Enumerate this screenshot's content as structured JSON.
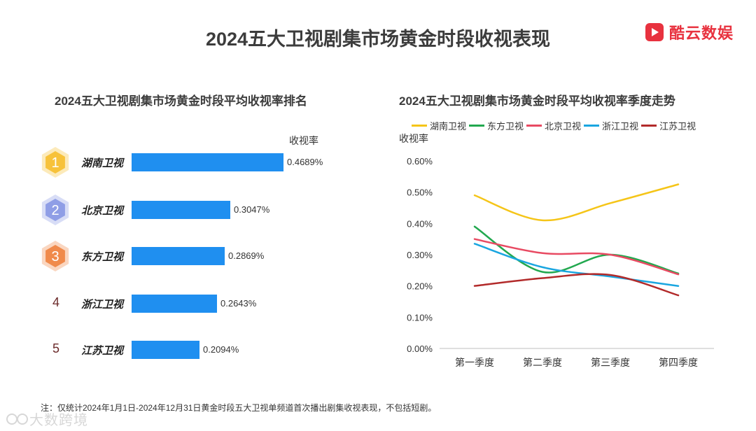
{
  "header": {
    "title": "2024五大卫视剧集市场黄金时段收视表现",
    "brand_name": "酷云数娱",
    "brand_color": "#e8323f"
  },
  "left_panel": {
    "subtitle": "2024五大卫视剧集市场黄金时段平均收视率排名",
    "value_header": "收视率",
    "rows": [
      {
        "rank": "1",
        "name": "湖南卫视",
        "value": 0.4689,
        "label": "0.4689%",
        "badge_color": "#f7c23a"
      },
      {
        "rank": "2",
        "name": "北京卫视",
        "value": 0.3047,
        "label": "0.3047%",
        "badge_color": "#8f9ee6"
      },
      {
        "rank": "3",
        "name": "东方卫视",
        "value": 0.2869,
        "label": "0.2869%",
        "badge_color": "#f08a4b"
      },
      {
        "rank": "4",
        "name": "浙江卫视",
        "value": 0.2643,
        "label": "0.2643%",
        "badge_color": ""
      },
      {
        "rank": "5",
        "name": "江苏卫视",
        "value": 0.2094,
        "label": "0.2094%",
        "badge_color": ""
      }
    ],
    "bar_color": "#1f8ff0"
  },
  "right_panel": {
    "subtitle": "2024五大卫视剧集市场黄金时段平均收视率季度走势"
  },
  "chart_data": {
    "type": "line",
    "title": "2024五大卫视剧集市场黄金时段平均收视率季度走势",
    "ylabel": "收视率",
    "xlabel": "",
    "categories": [
      "第一季度",
      "第二季度",
      "第三季度",
      "第四季度"
    ],
    "ylim": [
      0,
      0.6
    ],
    "yticks": [
      0,
      0.1,
      0.2,
      0.3,
      0.4,
      0.5,
      0.6
    ],
    "ytick_labels": [
      "0.00%",
      "0.10%",
      "0.20%",
      "0.30%",
      "0.40%",
      "0.50%",
      "0.60%"
    ],
    "grid": false,
    "legend_position": "top",
    "series": [
      {
        "name": "湖南卫视",
        "color": "#f5c518",
        "values": [
          0.49,
          0.41,
          0.465,
          0.525
        ]
      },
      {
        "name": "东方卫视",
        "color": "#22a84f",
        "values": [
          0.39,
          0.245,
          0.3,
          0.24
        ]
      },
      {
        "name": "北京卫视",
        "color": "#e84a62",
        "values": [
          0.35,
          0.305,
          0.3,
          0.237
        ]
      },
      {
        "name": "浙江卫视",
        "color": "#1aa6e0",
        "values": [
          0.335,
          0.26,
          0.23,
          0.2
        ]
      },
      {
        "name": "江苏卫视",
        "color": "#b22a2a",
        "values": [
          0.2,
          0.225,
          0.235,
          0.17
        ]
      }
    ]
  },
  "footnote": "注：仅统计2024年1月1日-2024年12月31日黄金时段五大卫视单频道首次播出剧集收视表现，不包括短剧。",
  "watermark": "大数跨境"
}
